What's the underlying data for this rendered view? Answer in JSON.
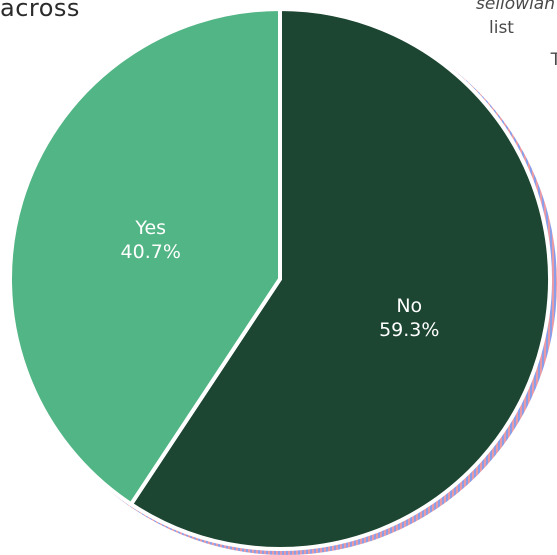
{
  "snippets": {
    "top_left": "across",
    "top_right_line1": "sellowlan",
    "top_right_line2": "list",
    "top_right_line3": "T"
  },
  "colors": {
    "no": "#1c4532",
    "yes": "#52b585",
    "edge": "#ffffff",
    "shadow_a": "#e79aa6",
    "shadow_b": "#8d9ee8"
  },
  "chart_data": {
    "type": "pie",
    "categories": [
      "No",
      "Yes"
    ],
    "values": [
      59.3,
      40.7
    ],
    "labels": [
      "No\n59.3%",
      "Yes\n40.7%"
    ],
    "label_parts": [
      {
        "name": "No",
        "pct": "59.3%"
      },
      {
        "name": "Yes",
        "pct": "40.7%"
      }
    ],
    "start_angle_deg": 0,
    "direction": "clockwise"
  }
}
